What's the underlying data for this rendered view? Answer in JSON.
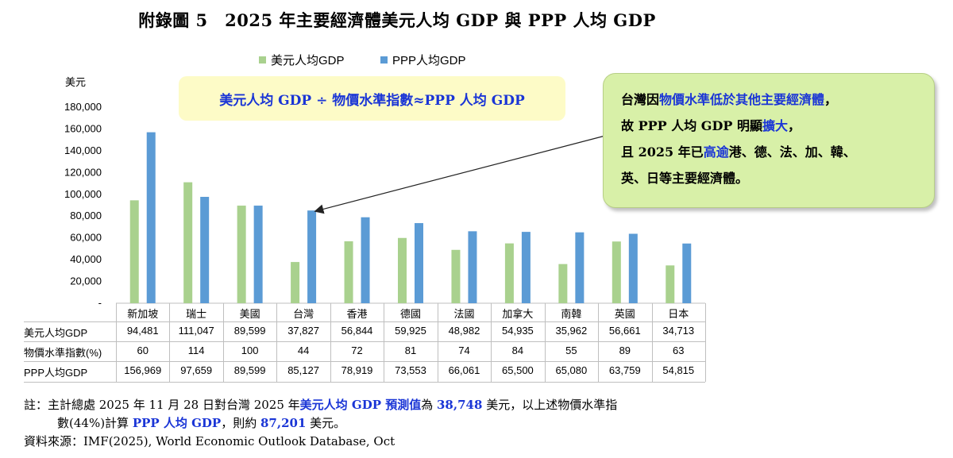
{
  "title": "附錄圖 5　2025 年主要經濟體美元人均 GDP 與 PPP 人均 GDP",
  "chart_data": {
    "type": "bar",
    "ylabel": "美元",
    "ylim": [
      0,
      180000
    ],
    "yticks": [
      "-",
      "20,000",
      "40,000",
      "60,000",
      "80,000",
      "100,000",
      "120,000",
      "140,000",
      "160,000",
      "180,000"
    ],
    "ytick_values": [
      0,
      20000,
      40000,
      60000,
      80000,
      100000,
      120000,
      140000,
      160000,
      180000
    ],
    "grid": false,
    "legend_position": "top",
    "categories": [
      "新加坡",
      "瑞士",
      "美國",
      "台灣",
      "香港",
      "德國",
      "法國",
      "加拿大",
      "南韓",
      "英國",
      "日本"
    ],
    "series": [
      {
        "name": "美元人均GDP",
        "color": "#a9d18e",
        "values": [
          94481,
          111047,
          89599,
          37827,
          56844,
          59925,
          48982,
          54935,
          35962,
          56661,
          34713
        ]
      },
      {
        "name": "PPP人均GDP",
        "color": "#5b9bd5",
        "values": [
          156969,
          97659,
          89599,
          85127,
          78919,
          73553,
          66061,
          65500,
          65080,
          63759,
          54815
        ]
      }
    ],
    "table": {
      "rows": [
        {
          "label": "美元人均GDP",
          "values": [
            "94,481",
            "111,047",
            "89,599",
            "37,827",
            "56,844",
            "59,925",
            "48,982",
            "54,935",
            "35,962",
            "56,661",
            "34,713"
          ]
        },
        {
          "label": "物價水準指數(%)",
          "values": [
            "60",
            "114",
            "100",
            "44",
            "72",
            "81",
            "74",
            "84",
            "55",
            "89",
            "63"
          ]
        },
        {
          "label": "PPP人均GDP",
          "values": [
            "156,969",
            "97,659",
            "89,599",
            "85,127",
            "78,919",
            "73,553",
            "66,061",
            "65,500",
            "65,080",
            "63,759",
            "54,815"
          ]
        }
      ]
    },
    "annotations": {
      "formula": "美元人均 GDP ÷ 物價水準指數≈PPP 人均 GDP",
      "callout": {
        "line1_a": "台灣因",
        "line1_b": "物價水準低於其他主要經濟體",
        "line1_c": "，",
        "line2_a": "故 PPP 人均 GDP 明顯",
        "line2_b": "擴大",
        "line2_c": "，",
        "line3_a": "且 2025 年已",
        "line3_b": "高逾",
        "line3_c": "港、德、法、加、韓、",
        "line4": "英、日等主要經濟體。"
      }
    }
  },
  "notes": {
    "n1_a": "註：主計總處 2025 年 11 月 28 日對台灣 2025 年",
    "n1_b": "美元人均 GDP 預測值",
    "n1_c": "為 ",
    "n1_d": "38,748",
    "n1_e": " 美元，以上述物價水準指",
    "n2_a": "數(44%)計算 ",
    "n2_b": "PPP 人均 GDP",
    "n2_c": "，則約 ",
    "n2_d": "87,201",
    "n2_e": " 美元。",
    "source": "資料來源：IMF(2025), World Economic Outlook Database, Oct"
  }
}
